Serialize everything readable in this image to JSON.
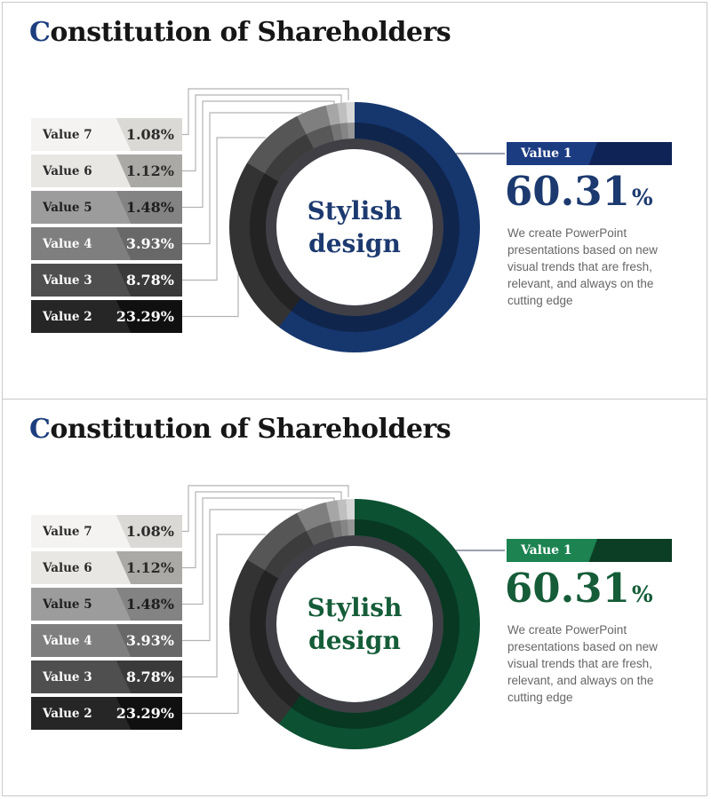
{
  "slides": [
    {
      "title_initial": "C",
      "title_rest": "onstitution of Shareholders",
      "center_text": {
        "line1": "Stylish",
        "line2": "design"
      },
      "theme": {
        "title_initial_color": "#1d3e7e",
        "accent": "#16366e",
        "bar_light": "#1c3c82",
        "bar_dark": "#0f2356",
        "text_accent": "#1c3a6f"
      },
      "legend": [
        {
          "label": "Value 7",
          "value": "1.08%",
          "bg": "#f4f3f1",
          "shade": "#dad9d6",
          "text": "#2b2b2b"
        },
        {
          "label": "Value 6",
          "value": "1.12%",
          "bg": "#e9e7e4",
          "shade": "#aba9a5",
          "text": "#2b2b2b"
        },
        {
          "label": "Value 5",
          "value": "1.48%",
          "bg": "#9c9c9c",
          "shade": "#838383",
          "text": "#1e1e1e"
        },
        {
          "label": "Value 4",
          "value": "3.93%",
          "bg": "#7f7f7f",
          "shade": "#686868",
          "text": "#ffffff"
        },
        {
          "label": "Value 3",
          "value": "8.78%",
          "bg": "#4f4f4f",
          "shade": "#3a3a3a",
          "text": "#ffffff"
        },
        {
          "label": "Value 2",
          "value": "23.29%",
          "bg": "#262626",
          "shade": "#101010",
          "text": "#ffffff"
        }
      ],
      "segments": [
        {
          "label": "Value 1",
          "pct": 60.31,
          "color": "#16366e"
        },
        {
          "label": "Value 2",
          "pct": 23.29,
          "color": "#333333"
        },
        {
          "label": "Value 3",
          "pct": 8.78,
          "color": "#565656"
        },
        {
          "label": "Value 4",
          "pct": 3.93,
          "color": "#7f7f7f"
        },
        {
          "label": "Value 5",
          "pct": 1.48,
          "color": "#a6a6a6"
        },
        {
          "label": "Value 6",
          "pct": 1.12,
          "color": "#bfbfbf"
        },
        {
          "label": "Value 7",
          "pct": 1.08,
          "color": "#d8d8d8"
        }
      ],
      "value1": {
        "label": "Value 1",
        "value": "60.31",
        "percent_sign": "%",
        "description": "We create PowerPoint presentations based on new visual trends that are fresh, relevant, and always on the cutting edge"
      }
    },
    {
      "title_initial": "C",
      "title_rest": "onstitution of Shareholders",
      "center_text": {
        "line1": "Stylish",
        "line2": "design"
      },
      "theme": {
        "title_initial_color": "#1d3e7e",
        "accent": "#0c5132",
        "bar_light": "#1c8351",
        "bar_dark": "#0b3e25",
        "text_accent": "#155c38"
      },
      "legend": [
        {
          "label": "Value 7",
          "value": "1.08%",
          "bg": "#f4f3f1",
          "shade": "#dad9d6",
          "text": "#2b2b2b"
        },
        {
          "label": "Value 6",
          "value": "1.12%",
          "bg": "#e9e7e4",
          "shade": "#aba9a5",
          "text": "#2b2b2b"
        },
        {
          "label": "Value 5",
          "value": "1.48%",
          "bg": "#9c9c9c",
          "shade": "#838383",
          "text": "#1e1e1e"
        },
        {
          "label": "Value 4",
          "value": "3.93%",
          "bg": "#7f7f7f",
          "shade": "#686868",
          "text": "#ffffff"
        },
        {
          "label": "Value 3",
          "value": "8.78%",
          "bg": "#4f4f4f",
          "shade": "#3a3a3a",
          "text": "#ffffff"
        },
        {
          "label": "Value 2",
          "value": "23.29%",
          "bg": "#262626",
          "shade": "#101010",
          "text": "#ffffff"
        }
      ],
      "segments": [
        {
          "label": "Value 1",
          "pct": 60.31,
          "color": "#0c5132"
        },
        {
          "label": "Value 2",
          "pct": 23.29,
          "color": "#333333"
        },
        {
          "label": "Value 3",
          "pct": 8.78,
          "color": "#565656"
        },
        {
          "label": "Value 4",
          "pct": 3.93,
          "color": "#7f7f7f"
        },
        {
          "label": "Value 5",
          "pct": 1.48,
          "color": "#a6a6a6"
        },
        {
          "label": "Value 6",
          "pct": 1.12,
          "color": "#bfbfbf"
        },
        {
          "label": "Value 7",
          "pct": 1.08,
          "color": "#d8d8d8"
        }
      ],
      "value1": {
        "label": "Value 1",
        "value": "60.31",
        "percent_sign": "%",
        "description": "We create PowerPoint presentations based on new visual trends that are fresh, relevant, and always on the cutting edge"
      }
    }
  ],
  "chart_data": [
    {
      "type": "pie",
      "subtype": "donut",
      "title": "Constitution of Shareholders",
      "center_label": "Stylish design",
      "labels": [
        "Value 1",
        "Value 2",
        "Value 3",
        "Value 4",
        "Value 5",
        "Value 6",
        "Value 7"
      ],
      "values": [
        60.31,
        23.29,
        8.78,
        3.93,
        1.48,
        1.12,
        1.08
      ],
      "colors": [
        "#16366e",
        "#333333",
        "#565656",
        "#7f7f7f",
        "#a6a6a6",
        "#bfbfbf",
        "#d8d8d8"
      ],
      "start_angle_deg": 0,
      "direction": "clockwise",
      "legend_position": "left",
      "highlight": {
        "label": "Value 1",
        "value": 60.31,
        "note": "We create PowerPoint presentations based on new visual trends that are fresh, relevant, and always on the cutting edge"
      }
    },
    {
      "type": "pie",
      "subtype": "donut",
      "title": "Constitution of Shareholders",
      "center_label": "Stylish design",
      "labels": [
        "Value 1",
        "Value 2",
        "Value 3",
        "Value 4",
        "Value 5",
        "Value 6",
        "Value 7"
      ],
      "values": [
        60.31,
        23.29,
        8.78,
        3.93,
        1.48,
        1.12,
        1.08
      ],
      "colors": [
        "#0c5132",
        "#333333",
        "#565656",
        "#7f7f7f",
        "#a6a6a6",
        "#bfbfbf",
        "#d8d8d8"
      ],
      "start_angle_deg": 0,
      "direction": "clockwise",
      "legend_position": "left",
      "highlight": {
        "label": "Value 1",
        "value": 60.31,
        "note": "We create PowerPoint presentations based on new visual trends that are fresh, relevant, and always on the cutting edge"
      }
    }
  ]
}
